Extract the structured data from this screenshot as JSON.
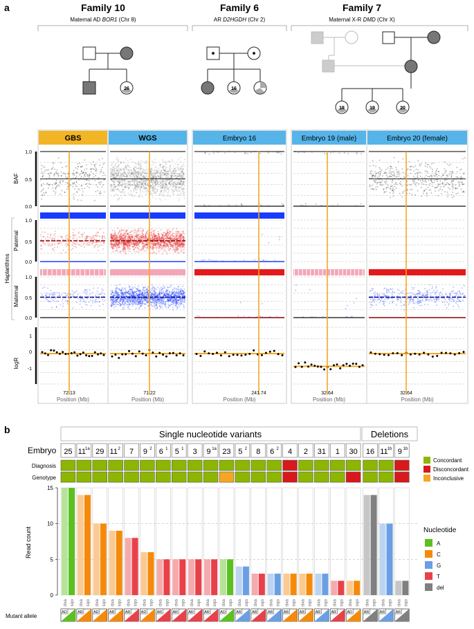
{
  "panel_a": {
    "label": "a",
    "families": [
      {
        "title": "Family 10",
        "subtitle_pre": "Maternal AD ",
        "gene": "BOR1",
        "subtitle_post": " (Chr 8)",
        "embryo_ids": [
          "26"
        ]
      },
      {
        "title": "Family 6",
        "subtitle_pre": "AR ",
        "gene": "D2HGDH",
        "subtitle_post": " (Chr 2)",
        "embryo_ids": [
          "16"
        ]
      },
      {
        "title": "Family 7",
        "subtitle_pre": "Maternal X-R ",
        "gene": "DMD",
        "subtitle_post": " (Chr X)",
        "embryo_ids": [
          "18",
          "19",
          "20"
        ]
      }
    ],
    "tracks": {
      "baf": "BAF",
      "paternal": "Paternal",
      "maternal": "Maternal",
      "haplarithms": "Haplarithms",
      "logr": "logR"
    },
    "y_ticks_frac": [
      "1.0",
      "0.5",
      "0.0"
    ],
    "y_ticks_logr": [
      "1",
      "0",
      "-1"
    ],
    "columns": [
      {
        "title": "GBS",
        "color": "#f2b526",
        "position": "72.13"
      },
      {
        "title": "WGS",
        "color": "#56b4e9",
        "position": "71.22"
      },
      {
        "title": "Embryo 16",
        "color": "#56b4e9",
        "position": "241.74"
      },
      {
        "title": "Embryo 19 (male)",
        "color": "#56b4e9",
        "position": "32.64"
      },
      {
        "title": "Embryo 20 (female)",
        "color": "#56b4e9",
        "position": "32.64"
      }
    ],
    "xlabel": "Position (Mb)"
  },
  "panel_b": {
    "label": "b",
    "group_snv": "Single nucleotide variants",
    "group_del": "Deletions",
    "embryo_row_label": "Embryo",
    "diagnosis_label": "Diagnosis",
    "genotype_label": "Genotype",
    "embryos": [
      {
        "num": "25",
        "sup": ""
      },
      {
        "num": "11",
        "sup": "1a"
      },
      {
        "num": "29",
        "sup": ""
      },
      {
        "num": "11",
        "sup": "2"
      },
      {
        "num": "7",
        "sup": ""
      },
      {
        "num": "9",
        "sup": "2"
      },
      {
        "num": "6",
        "sup": "1"
      },
      {
        "num": "5",
        "sup": "1"
      },
      {
        "num": "3",
        "sup": ""
      },
      {
        "num": "9",
        "sup": "1a"
      },
      {
        "num": "23",
        "sup": ""
      },
      {
        "num": "5",
        "sup": "2"
      },
      {
        "num": "8",
        "sup": ""
      },
      {
        "num": "6",
        "sup": "2"
      },
      {
        "num": "4",
        "sup": ""
      },
      {
        "num": "2",
        "sup": ""
      },
      {
        "num": "31",
        "sup": ""
      },
      {
        "num": "1",
        "sup": ""
      },
      {
        "num": "30",
        "sup": ""
      },
      {
        "num": "16",
        "sup": ""
      },
      {
        "num": "11",
        "sup": "1b"
      },
      {
        "num": "9",
        "sup": "1b"
      }
    ],
    "diagnosis": [
      "Concordant",
      "Concordant",
      "Concordant",
      "Concordant",
      "Concordant",
      "Concordant",
      "Concordant",
      "Concordant",
      "Concordant",
      "Concordant",
      "Concordant",
      "Concordant",
      "Concordant",
      "Concordant",
      "Disconcordant",
      "Concordant",
      "Concordant",
      "Concordant",
      "Concordant",
      "Concordant",
      "Concordant",
      "Disconcordant"
    ],
    "genotype": [
      "Concordant",
      "Concordant",
      "Concordant",
      "Concordant",
      "Concordant",
      "Concordant",
      "Concordant",
      "Concordant",
      "Concordant",
      "Concordant",
      "Inconclusive",
      "Concordant",
      "Concordant",
      "Concordant",
      "Disconcordant",
      "Concordant",
      "Concordant",
      "Concordant",
      "Disconcordant",
      "Concordant",
      "Concordant",
      "Disconcordant"
    ],
    "status_legend": [
      {
        "label": "Concordant",
        "color": "#8db600"
      },
      {
        "label": "Disconcordant",
        "color": "#d7191c"
      },
      {
        "label": "Inconclusive",
        "color": "#f5a623"
      }
    ],
    "nucleotide_legend_title": "Nucleotide",
    "nucleotides": [
      {
        "label": "A",
        "color": "#5cc11f"
      },
      {
        "label": "C",
        "color": "#f58a0a"
      },
      {
        "label": "G",
        "color": "#6a9fe3"
      },
      {
        "label": "T",
        "color": "#e8414a"
      },
      {
        "label": "del",
        "color": "#808080"
      }
    ],
    "mutant_allele_label": "Mutant allele",
    "inheritance": [
      "AD",
      "AR",
      "AD",
      "AR",
      "AR",
      "AD",
      "AR",
      "AR",
      "AR",
      "AR",
      "AD",
      "AR",
      "AR",
      "AR",
      "AR",
      "AR",
      "AR",
      "AR",
      "AD",
      "AR",
      "AR",
      "AR"
    ]
  },
  "chart_data": {
    "type": "bar",
    "title": "",
    "ylabel": "Read count",
    "xlabel": "",
    "ylim": [
      0,
      15
    ],
    "yticks": [
      "0",
      "5",
      "10",
      "15"
    ],
    "bar_labels": [
      "dxa",
      "sqo"
    ],
    "categories": [
      "25",
      "11 1a",
      "29",
      "11 2",
      "7",
      "9 2",
      "6 1",
      "5 1",
      "3",
      "9 1a",
      "23",
      "5 2",
      "8",
      "6 2",
      "4",
      "2",
      "31",
      "1",
      "30",
      "16",
      "11 1b",
      "9 1b"
    ],
    "series": [
      {
        "name": "dxa",
        "values": [
          15,
          14,
          10,
          9,
          8,
          6,
          5,
          5,
          5,
          5,
          5,
          4,
          3,
          3,
          3,
          3,
          3,
          2,
          2,
          14,
          10,
          2
        ]
      },
      {
        "name": "sqo",
        "values": [
          15,
          14,
          10,
          9,
          8,
          6,
          5,
          5,
          5,
          5,
          5,
          4,
          3,
          3,
          3,
          3,
          3,
          2,
          2,
          14,
          10,
          2
        ]
      }
    ],
    "nucleotide": [
      "A",
      "C",
      "C",
      "C",
      "T",
      "C",
      "T",
      "T",
      "T",
      "T",
      "A",
      "G",
      "T",
      "G",
      "C",
      "C",
      "G",
      "T",
      "C",
      "del",
      "G",
      "del"
    ]
  }
}
